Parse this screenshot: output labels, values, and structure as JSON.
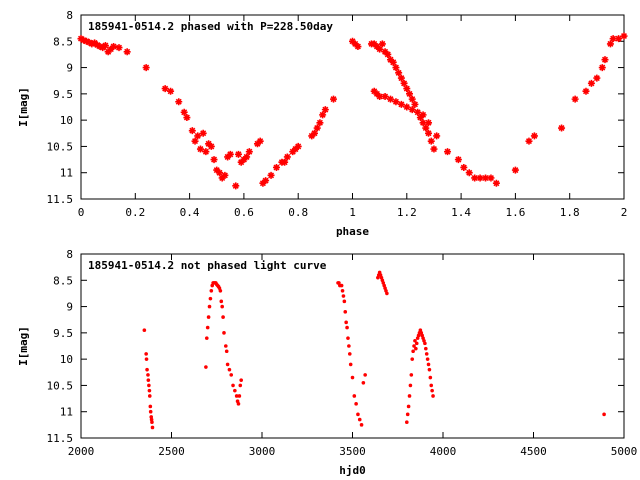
{
  "chart_data": [
    {
      "type": "scatter",
      "title": "185941-0514.2 phased with P=228.50day",
      "xlabel": "phase",
      "ylabel": "I[mag]",
      "xlim": [
        0,
        2
      ],
      "ylim": [
        8,
        11.5
      ],
      "y_inverted": true,
      "x_ticks": [
        "0",
        "0.2",
        "0.4",
        "0.6",
        "0.8",
        "1",
        "1.2",
        "1.4",
        "1.6",
        "1.8",
        "2"
      ],
      "y_ticks": [
        "8",
        "8.5",
        "9",
        "9.5",
        "10",
        "10.5",
        "11",
        "11.5"
      ],
      "grid": false,
      "marker_color": "#ff0000",
      "series": [
        {
          "x": [
            0.0,
            0.01,
            0.02,
            0.03,
            0.04,
            0.05,
            0.06,
            0.07,
            0.08,
            0.09,
            0.1,
            0.11,
            0.12,
            0.14,
            0.17,
            0.24,
            0.31,
            0.33,
            0.36,
            0.38,
            0.39,
            0.41,
            0.42,
            0.43,
            0.44,
            0.45,
            0.46,
            0.47,
            0.48,
            0.49,
            0.5,
            0.51,
            0.52,
            0.53,
            0.54,
            0.55,
            0.57,
            0.58,
            0.59,
            0.6,
            0.61,
            0.62,
            0.65,
            0.66,
            0.67,
            0.68,
            0.7,
            0.72,
            0.74,
            0.75,
            0.76,
            0.78,
            0.79,
            0.8,
            0.85,
            0.86,
            0.87,
            0.88,
            0.89,
            0.9,
            0.93,
            1.0,
            1.01,
            1.02,
            1.07,
            1.08,
            1.09,
            1.1,
            1.11,
            1.12,
            1.13,
            1.14,
            1.15,
            1.16,
            1.17,
            1.18,
            1.19,
            1.2,
            1.21,
            1.22,
            1.23,
            1.24,
            1.25,
            1.26,
            1.27,
            1.28,
            1.29,
            1.3,
            1.08,
            1.09,
            1.1,
            1.12,
            1.14,
            1.16,
            1.18,
            1.2,
            1.22,
            1.26,
            1.28,
            1.31,
            1.35,
            1.39,
            1.41,
            1.43,
            1.45,
            1.47,
            1.49,
            1.51,
            1.53,
            1.6,
            1.65,
            1.67,
            1.77,
            1.82,
            1.86,
            1.88,
            1.9,
            1.92,
            1.93,
            1.95,
            1.96,
            1.98,
            2.0
          ],
          "y": [
            8.45,
            8.48,
            8.5,
            8.52,
            8.55,
            8.53,
            8.57,
            8.6,
            8.62,
            8.58,
            8.7,
            8.65,
            8.6,
            8.62,
            8.7,
            9.0,
            9.4,
            9.45,
            9.65,
            9.85,
            9.95,
            10.2,
            10.4,
            10.3,
            10.55,
            10.25,
            10.6,
            10.45,
            10.5,
            10.75,
            10.95,
            11.0,
            11.1,
            11.05,
            10.7,
            10.65,
            11.25,
            10.65,
            10.8,
            10.75,
            10.7,
            10.6,
            10.45,
            10.4,
            11.2,
            11.15,
            11.05,
            10.9,
            10.8,
            10.8,
            10.7,
            10.6,
            10.55,
            10.5,
            10.3,
            10.25,
            10.15,
            10.05,
            9.9,
            9.8,
            9.6,
            8.5,
            8.55,
            8.6,
            8.55,
            8.55,
            8.6,
            8.65,
            8.55,
            8.7,
            8.75,
            8.85,
            8.9,
            9.0,
            9.1,
            9.2,
            9.3,
            9.4,
            9.5,
            9.6,
            9.7,
            9.85,
            9.95,
            10.05,
            10.15,
            10.25,
            10.4,
            10.55,
            9.45,
            9.5,
            9.55,
            9.55,
            9.6,
            9.65,
            9.7,
            9.75,
            9.8,
            9.9,
            10.05,
            10.3,
            10.6,
            10.75,
            10.9,
            11.0,
            11.1,
            11.1,
            11.1,
            11.1,
            11.2,
            10.95,
            10.4,
            10.3,
            10.15,
            9.6,
            9.45,
            9.3,
            9.2,
            9.0,
            8.85,
            8.55,
            8.45,
            8.45,
            8.4
          ]
        }
      ]
    },
    {
      "type": "scatter",
      "title": "185941-0514.2 not phased light curve",
      "xlabel": "hjd0",
      "ylabel": "I[mag]",
      "xlim": [
        2000,
        5000
      ],
      "ylim": [
        8,
        11.5
      ],
      "y_inverted": true,
      "x_ticks": [
        "2000",
        "2500",
        "3000",
        "3500",
        "4000",
        "4500",
        "5000"
      ],
      "y_ticks": [
        "8",
        "8.5",
        "9",
        "9.5",
        "10",
        "10.5",
        "11",
        "11.5"
      ],
      "grid": false,
      "marker_color": "#ff0000",
      "series": [
        {
          "x": [
            2350,
            2360,
            2362,
            2365,
            2370,
            2372,
            2375,
            2378,
            2380,
            2383,
            2385,
            2388,
            2390,
            2392,
            2395,
            2690,
            2695,
            2700,
            2705,
            2710,
            2715,
            2720,
            2725,
            2730,
            2735,
            2740,
            2745,
            2750,
            2755,
            2760,
            2765,
            2770,
            2775,
            2780,
            2785,
            2790,
            2800,
            2805,
            2810,
            2820,
            2830,
            2840,
            2850,
            2860,
            2865,
            2870,
            2875,
            2880,
            2885,
            3420,
            3425,
            3430,
            3440,
            3445,
            3450,
            3455,
            3460,
            3465,
            3470,
            3475,
            3480,
            3485,
            3490,
            3500,
            3510,
            3520,
            3530,
            3540,
            3550,
            3560,
            3570,
            3640,
            3645,
            3650,
            3655,
            3660,
            3665,
            3670,
            3675,
            3680,
            3685,
            3690,
            3800,
            3805,
            3810,
            3815,
            3820,
            3825,
            3830,
            3835,
            3840,
            3845,
            3850,
            3855,
            3860,
            3865,
            3870,
            3875,
            3880,
            3885,
            3890,
            3895,
            3900,
            3905,
            3910,
            3915,
            3920,
            3925,
            3930,
            3935,
            3940,
            3945,
            4890
          ],
          "y": [
            9.45,
            9.9,
            10.0,
            10.2,
            10.3,
            10.4,
            10.5,
            10.6,
            10.7,
            10.9,
            11.0,
            11.1,
            11.15,
            11.2,
            11.3,
            10.15,
            9.6,
            9.4,
            9.2,
            9.0,
            8.85,
            8.7,
            8.6,
            8.55,
            8.55,
            8.55,
            8.55,
            8.58,
            8.6,
            8.62,
            8.65,
            8.7,
            8.9,
            9.0,
            9.2,
            9.5,
            9.75,
            9.85,
            10.1,
            10.2,
            10.3,
            10.5,
            10.6,
            10.7,
            10.8,
            10.85,
            10.7,
            10.5,
            10.4,
            8.55,
            8.55,
            8.6,
            8.6,
            8.7,
            8.8,
            8.9,
            9.1,
            9.3,
            9.4,
            9.6,
            9.75,
            9.9,
            10.1,
            10.35,
            10.7,
            10.85,
            11.05,
            11.15,
            11.25,
            10.45,
            10.3,
            8.45,
            8.4,
            8.35,
            8.4,
            8.45,
            8.5,
            8.55,
            8.6,
            8.65,
            8.7,
            8.75,
            11.2,
            11.05,
            10.9,
            10.7,
            10.5,
            10.3,
            10.0,
            9.85,
            9.75,
            9.65,
            9.8,
            9.7,
            9.6,
            9.55,
            9.5,
            9.45,
            9.5,
            9.55,
            9.6,
            9.65,
            9.7,
            9.8,
            9.9,
            10.0,
            10.1,
            10.2,
            10.35,
            10.5,
            10.6,
            10.7,
            11.05
          ]
        }
      ]
    }
  ]
}
